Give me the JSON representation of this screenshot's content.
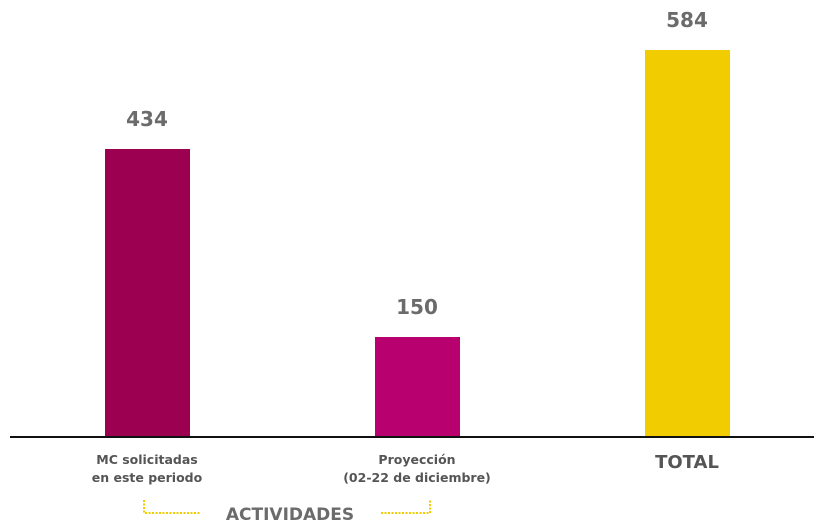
{
  "chart_data": {
    "type": "bar",
    "categories": [
      "MC solicitadas\nen este periodo",
      "Proyección\n(02-22 de diciembre)",
      "TOTAL"
    ],
    "values": [
      434,
      150,
      584
    ],
    "colors": [
      "#9c0050",
      "#b8006e",
      "#f0cc00"
    ],
    "annotations": [
      "ACTIVIDADES"
    ]
  }
}
